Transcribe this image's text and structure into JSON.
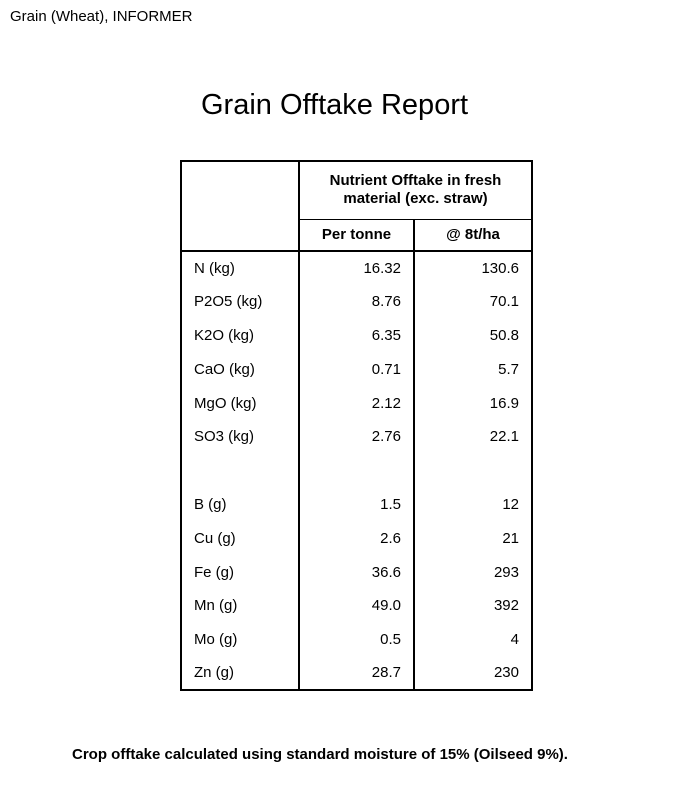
{
  "page": {
    "header": "Grain (Wheat), INFORMER",
    "title": "Grain Offtake Report",
    "footnote": "Crop offtake calculated using standard moisture of 15% (Oilseed 9%)."
  },
  "table": {
    "group_header": "Nutrient Offtake in fresh material (exc. straw)",
    "columns": {
      "per_tonne": "Per tonne",
      "at_8tha": "@ 8t/ha"
    },
    "rows": [
      {
        "label": "N (kg)",
        "per_tonne": "16.32",
        "at_8tha": "130.6"
      },
      {
        "label": "P2O5 (kg)",
        "per_tonne": "8.76",
        "at_8tha": "70.1"
      },
      {
        "label": "K2O (kg)",
        "per_tonne": "6.35",
        "at_8tha": "50.8"
      },
      {
        "label": "CaO (kg)",
        "per_tonne": "0.71",
        "at_8tha": "5.7"
      },
      {
        "label": "MgO (kg)",
        "per_tonne": "2.12",
        "at_8tha": "16.9"
      },
      {
        "label": "SO3 (kg)",
        "per_tonne": "2.76",
        "at_8tha": "22.1"
      },
      {
        "label": "",
        "per_tonne": "",
        "at_8tha": ""
      },
      {
        "label": "B (g)",
        "per_tonne": "1.5",
        "at_8tha": "12"
      },
      {
        "label": "Cu (g)",
        "per_tonne": "2.6",
        "at_8tha": "21"
      },
      {
        "label": "Fe (g)",
        "per_tonne": "36.6",
        "at_8tha": "293"
      },
      {
        "label": "Mn (g)",
        "per_tonne": "49.0",
        "at_8tha": "392"
      },
      {
        "label": "Mo (g)",
        "per_tonne": "0.5",
        "at_8tha": "4"
      },
      {
        "label": "Zn (g)",
        "per_tonne": "28.7",
        "at_8tha": "230"
      }
    ]
  },
  "colors": {
    "text": "#000000",
    "background": "#ffffff",
    "border": "#000000"
  }
}
